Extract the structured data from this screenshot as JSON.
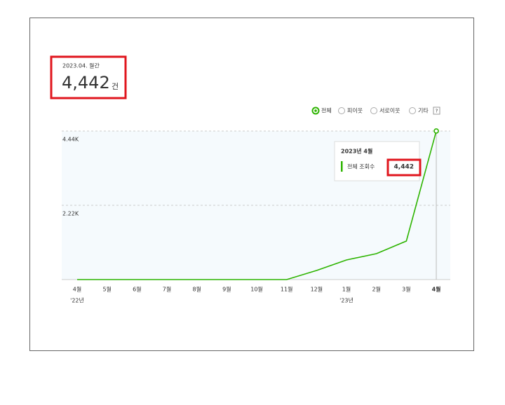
{
  "summary": {
    "period": "2023.04. 월간",
    "value": "4,442",
    "unit": "건"
  },
  "filters": [
    "전체",
    "피이웃",
    "서로이웃",
    "기타"
  ],
  "help": "?",
  "tooltip": {
    "title": "2023년 4월"
  },
  "chart_data": {
    "type": "line",
    "categories": [
      "4월",
      "5월",
      "6월",
      "7월",
      "8월",
      "9월",
      "10월",
      "11월",
      "12월",
      "1월",
      "2월",
      "3월",
      "4월"
    ],
    "year_labels": [
      "'22년",
      null,
      null,
      null,
      null,
      null,
      null,
      null,
      null,
      "'23년",
      null,
      null,
      null
    ],
    "series": [
      {
        "name": "전체 조회수",
        "color": "#2db400",
        "values": [
          0,
          0,
          0,
          0,
          0,
          0,
          0,
          0,
          272,
          586,
          775,
          1152,
          4442
        ],
        "value_labels": [
          null,
          null,
          null,
          null,
          null,
          null,
          null,
          null,
          null,
          null,
          null,
          null,
          "4,442"
        ]
      }
    ],
    "ylim": [
      0,
      4440
    ],
    "yticks": [
      {
        "value": 4440,
        "label": "4.44K"
      },
      {
        "value": 2220,
        "label": "2.22K"
      }
    ],
    "grid": true
  }
}
